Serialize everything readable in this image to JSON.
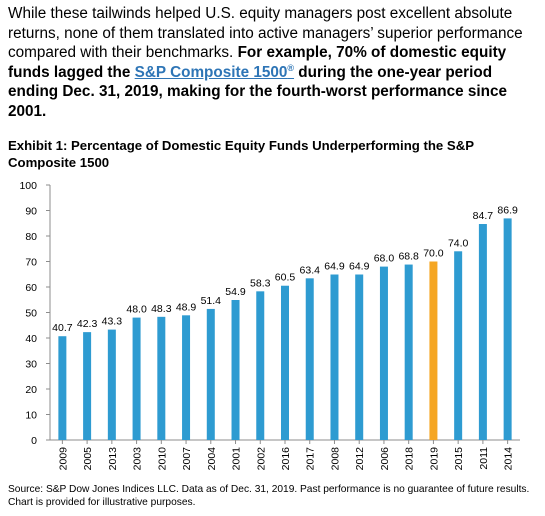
{
  "intro": {
    "plain": "While these tailwinds helped U.S. equity managers post excellent absolute returns, none of them translated into active managers’ superior performance compared with their benchmarks.",
    "bold_a": "For example, 70% of domestic equity funds lagged the",
    "link": "S&P Composite 1500",
    "link_sup": "®",
    "bold_b": "during the one-year period ending Dec. 31, 2019, making for the fourth-worst performance since 2001."
  },
  "exhibit_title": "Exhibit 1: Percentage of Domestic Equity Funds Underperforming the S&P Composite 1500",
  "source_note": "Source: S&P Dow Jones Indices LLC.  Data as of Dec. 31, 2019.  Past performance is no guarantee of future results.  Chart is provided for illustrative purposes.",
  "chart_data": {
    "type": "bar",
    "title": "Exhibit 1: Percentage of Domestic Equity Funds Underperforming the S&P Composite 1500",
    "categories": [
      "2009",
      "2005",
      "2013",
      "2003",
      "2010",
      "2007",
      "2004",
      "2001",
      "2002",
      "2016",
      "2017",
      "2008",
      "2012",
      "2006",
      "2018",
      "2019",
      "2015",
      "2011",
      "2014"
    ],
    "values": [
      40.7,
      42.3,
      43.3,
      48.0,
      48.3,
      48.9,
      51.4,
      54.9,
      58.3,
      60.5,
      63.4,
      64.9,
      64.9,
      68.0,
      68.8,
      70.0,
      74.0,
      84.7,
      86.9
    ],
    "value_labels": [
      "40.7",
      "42.3",
      "43.3",
      "48.0",
      "48.3",
      "48.9",
      "51.4",
      "54.9",
      "58.3",
      "60.5",
      "63.4",
      "64.9",
      "64.9",
      "68.0",
      "68.8",
      "70.0",
      "74.0",
      "84.7",
      "86.9"
    ],
    "highlight_category": "2019",
    "ylim": [
      0,
      100
    ],
    "yticks": [
      "0",
      "10",
      "20",
      "30",
      "40",
      "50",
      "60",
      "70",
      "80",
      "90",
      "100"
    ],
    "xlabel": "",
    "ylabel": "",
    "grid": false,
    "colors": {
      "bar": "#2e9bd1",
      "highlight": "#f5a623",
      "axis": "#8c8c8c"
    }
  }
}
